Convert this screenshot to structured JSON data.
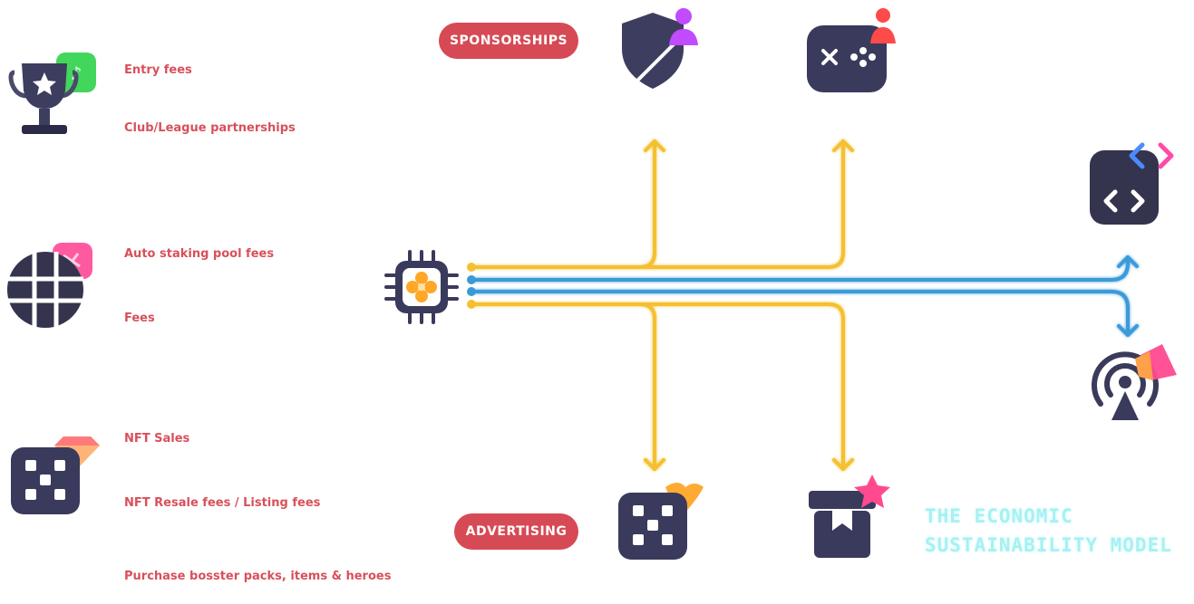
{
  "income": {
    "entry_fees": "Entry fees",
    "club_league": "Club/League partnerships",
    "auto_staking": "Auto staking pool fees",
    "fees": "Fees",
    "nft_sales": "NFT Sales",
    "nft_resale": "NFT Resale fees / Listing fees",
    "purchase": "Purchase bosster packs, items & heroes"
  },
  "pills": {
    "sponsorships": "SPONSORSHIPS",
    "advertising": "ADVERTISING"
  },
  "title": {
    "line1": "THE ECONOMIC",
    "line2": "SUSTAINABILITY MODEL"
  },
  "colors": {
    "accent_red": "#d64a55",
    "flow_gold": "#f4c030",
    "flow_blue": "#3a9ad8",
    "icon_dark": "#3a3a5c",
    "title_cyan": "#a8f0f2"
  },
  "icons": [
    "trophy-icon",
    "globe-icon",
    "nft-cube-icon",
    "chip-icon",
    "shield-user-icon",
    "gamepad-user-icon",
    "code-icon",
    "broadcast-icon",
    "nft-box-icon",
    "gift-box-icon"
  ]
}
